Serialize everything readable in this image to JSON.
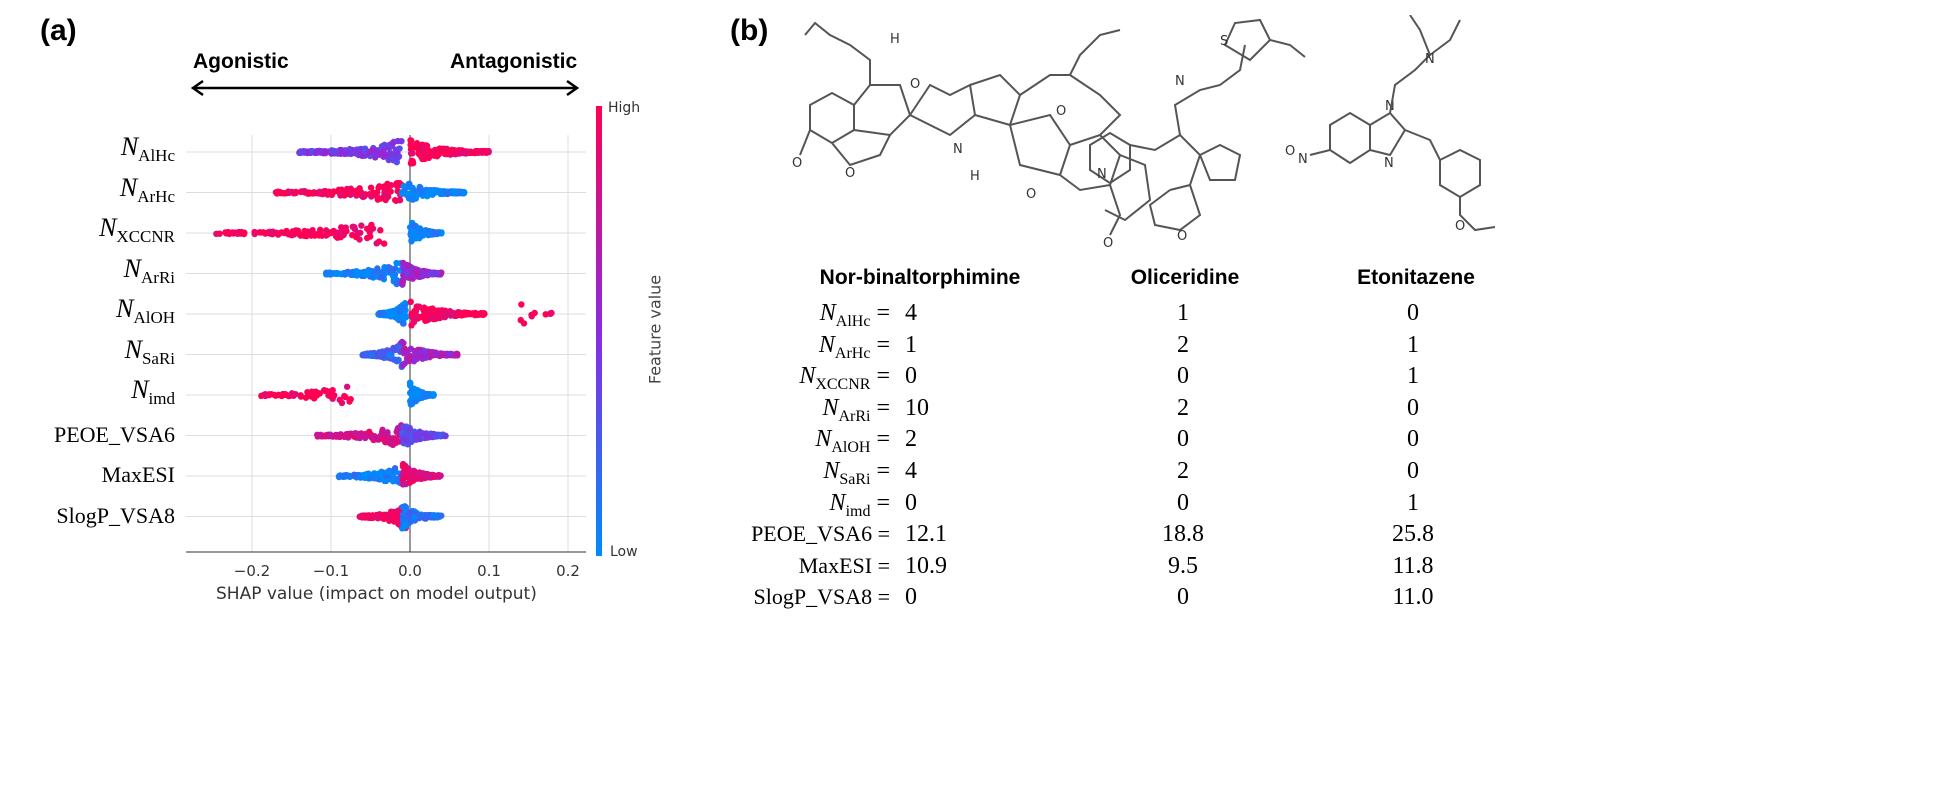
{
  "panel_a_label": "(a)",
  "panel_b_label": "(b)",
  "chart_data": {
    "type": "scatter",
    "subtype": "shap-beeswarm",
    "xlabel": "SHAP value (impact on model output)",
    "xlim": [
      -0.27,
      0.2
    ],
    "xticks": [
      -0.2,
      -0.1,
      0.0,
      0.1,
      0.2
    ],
    "xtick_labels": [
      "−0.2",
      "−0.1",
      "0.0",
      "0.1",
      "0.2"
    ],
    "direction_left": "Agonistic",
    "direction_right": "Antagonistic",
    "colorbar": {
      "label": "Feature value",
      "high": "High",
      "low": "Low",
      "high_color": "#ff0052",
      "low_color": "#008bfb"
    },
    "features": [
      {
        "base": "N",
        "sub": "AlHc",
        "clusters": [
          {
            "from": -0.14,
            "to": -0.01,
            "value": 0.45,
            "n": 160
          },
          {
            "from": 0.0,
            "to": 0.1,
            "value": 1.0,
            "n": 180
          }
        ]
      },
      {
        "base": "N",
        "sub": "ArHc",
        "clusters": [
          {
            "from": -0.17,
            "to": -0.01,
            "value": 1.0,
            "n": 130
          },
          {
            "from": -0.01,
            "to": 0.07,
            "value": 0.0,
            "n": 110
          }
        ]
      },
      {
        "base": "N",
        "sub": "XCCNR",
        "clusters": [
          {
            "from": -0.25,
            "to": -0.03,
            "value": 1.0,
            "n": 110
          },
          {
            "from": 0.0,
            "to": 0.04,
            "value": 0.0,
            "n": 100
          }
        ]
      },
      {
        "base": "N",
        "sub": "ArRi",
        "clusters": [
          {
            "from": -0.11,
            "to": -0.01,
            "value": 0.05,
            "n": 110
          },
          {
            "from": -0.01,
            "to": 0.04,
            "value": 0.55,
            "n": 120
          }
        ]
      },
      {
        "base": "N",
        "sub": "AlOH",
        "clusters": [
          {
            "from": -0.04,
            "to": -0.005,
            "value": 0.0,
            "n": 150
          },
          {
            "from": 0.0,
            "to": 0.1,
            "value": 1.0,
            "n": 130
          },
          {
            "from": 0.14,
            "to": 0.18,
            "value": 1.0,
            "n": 10
          }
        ]
      },
      {
        "base": "N",
        "sub": "SaRi",
        "clusters": [
          {
            "from": -0.06,
            "to": -0.01,
            "value": 0.2,
            "n": 120
          },
          {
            "from": -0.01,
            "to": 0.06,
            "value": 0.6,
            "n": 110
          }
        ]
      },
      {
        "base": "N",
        "sub": "imd",
        "clusters": [
          {
            "from": -0.19,
            "to": -0.07,
            "value": 1.0,
            "n": 60
          },
          {
            "from": 0.0,
            "to": 0.03,
            "value": 0.0,
            "n": 100
          }
        ]
      },
      {
        "base": "",
        "sub": "",
        "name": "PEOE_VSA6",
        "clusters": [
          {
            "from": -0.12,
            "to": -0.01,
            "value": 0.8,
            "n": 120
          },
          {
            "from": -0.01,
            "to": 0.045,
            "value": 0.35,
            "n": 130
          }
        ]
      },
      {
        "base": "",
        "sub": "",
        "name": "MaxESI",
        "clusters": [
          {
            "from": -0.09,
            "to": -0.005,
            "value": 0.05,
            "n": 110
          },
          {
            "from": -0.01,
            "to": 0.04,
            "value": 0.85,
            "n": 130
          }
        ]
      },
      {
        "base": "",
        "sub": "",
        "name": "SlogP_VSA8",
        "clusters": [
          {
            "from": -0.065,
            "to": -0.005,
            "value": 1.0,
            "n": 90
          },
          {
            "from": -0.01,
            "to": 0.04,
            "value": 0.1,
            "n": 120
          }
        ]
      }
    ]
  },
  "compounds": [
    "Nor-binaltorphimine",
    "Oliceridine",
    "Etonitazene"
  ],
  "atom_labels": {
    "O": "O",
    "N": "N",
    "H": "H",
    "S": "S"
  },
  "table": {
    "rows": [
      {
        "base": "N",
        "sub": "AlHc",
        "values": [
          "4",
          "1",
          "0"
        ]
      },
      {
        "base": "N",
        "sub": "ArHc",
        "values": [
          "1",
          "2",
          "1"
        ]
      },
      {
        "base": "N",
        "sub": "XCCNR",
        "values": [
          "0",
          "0",
          "1"
        ]
      },
      {
        "base": "N",
        "sub": "ArRi",
        "values": [
          "10",
          "2",
          "0"
        ]
      },
      {
        "base": "N",
        "sub": "AlOH",
        "values": [
          "2",
          "0",
          "0"
        ]
      },
      {
        "base": "N",
        "sub": "SaRi",
        "values": [
          "4",
          "2",
          "0"
        ]
      },
      {
        "base": "N",
        "sub": "imd",
        "values": [
          "0",
          "0",
          "1"
        ]
      },
      {
        "base": "",
        "sub": "",
        "name": "PEOE_VSA6",
        "values": [
          "12.1",
          "18.8",
          "25.8"
        ]
      },
      {
        "base": "",
        "sub": "",
        "name": "MaxESI",
        "values": [
          "10.9",
          "9.5",
          "11.8"
        ]
      },
      {
        "base": "",
        "sub": "",
        "name": "SlogP_VSA8",
        "values": [
          "0",
          "0",
          "11.0"
        ]
      }
    ],
    "equals": "="
  }
}
